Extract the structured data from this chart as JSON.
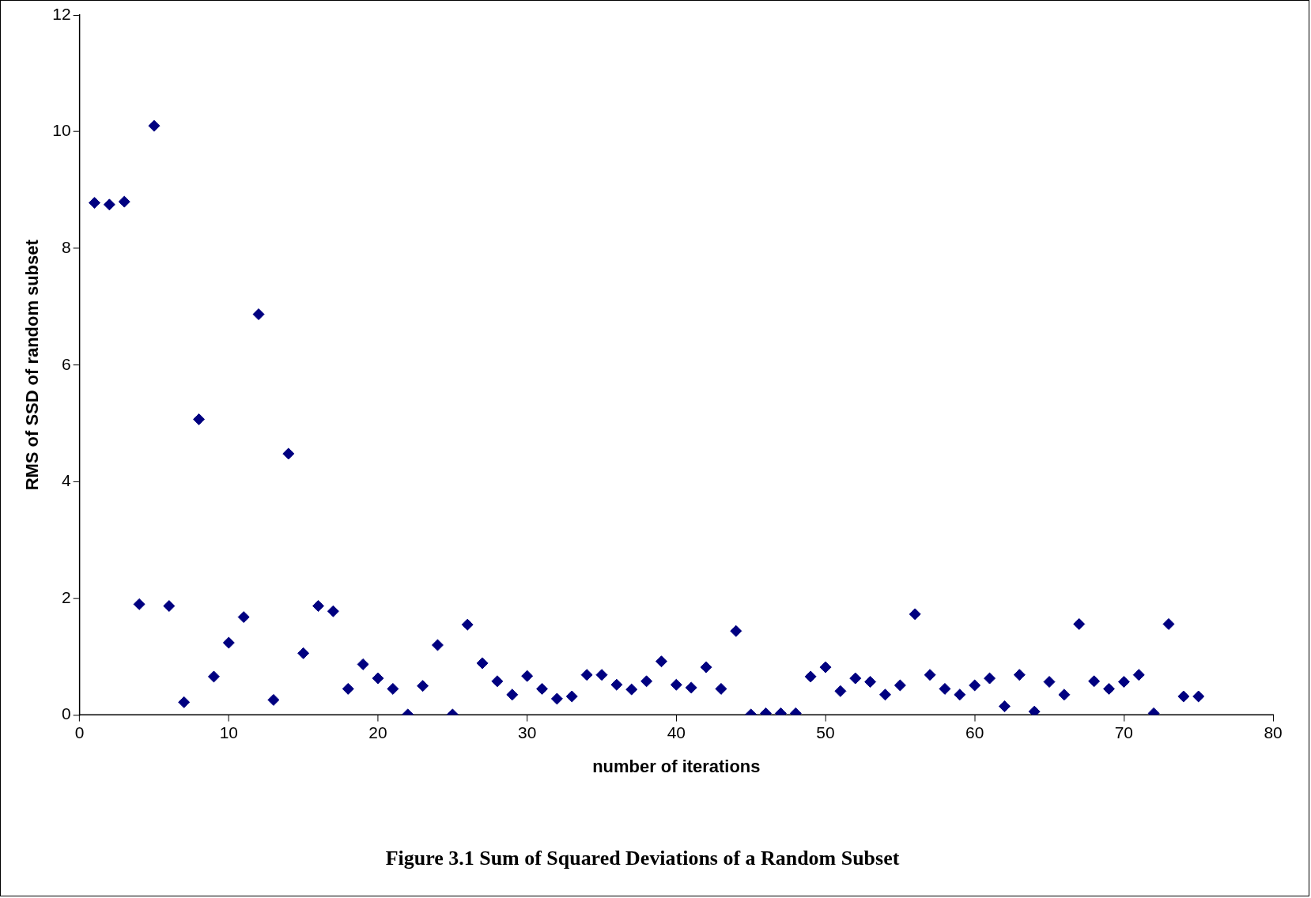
{
  "chart_data": {
    "type": "scatter",
    "title": "Figure 3.1 Sum of Squared Deviations of a Random Subset",
    "xlabel": "number of iterations",
    "ylabel": "RMS of SSD of random subset",
    "x": [
      1,
      2,
      3,
      4,
      5,
      6,
      7,
      8,
      9,
      10,
      11,
      12,
      13,
      14,
      15,
      16,
      17,
      18,
      19,
      20,
      21,
      22,
      23,
      24,
      25,
      26,
      27,
      28,
      29,
      30,
      31,
      32,
      33,
      34,
      35,
      36,
      37,
      38,
      39,
      40,
      41,
      42,
      43,
      44,
      45,
      46,
      47,
      48,
      49,
      50,
      51,
      52,
      53,
      54,
      55,
      56,
      57,
      58,
      59,
      60,
      61,
      62,
      63,
      64,
      65,
      66,
      67,
      68,
      69,
      70,
      71,
      72,
      73,
      74,
      75
    ],
    "values": [
      8.78,
      8.75,
      8.8,
      1.9,
      10.1,
      1.87,
      0.22,
      5.07,
      0.66,
      1.24,
      1.68,
      6.87,
      0.26,
      4.48,
      1.06,
      1.87,
      1.78,
      0.45,
      0.87,
      0.63,
      0.45,
      0.01,
      0.5,
      1.2,
      0.01,
      1.55,
      0.89,
      0.58,
      0.35,
      0.67,
      0.45,
      0.28,
      0.32,
      0.69,
      0.69,
      0.52,
      0.44,
      0.58,
      0.92,
      0.52,
      0.47,
      0.82,
      0.45,
      1.44,
      0.01,
      0.03,
      0.03,
      0.03,
      0.66,
      0.82,
      0.41,
      0.63,
      0.57,
      0.35,
      0.51,
      1.73,
      0.69,
      0.45,
      0.35,
      0.51,
      0.63,
      0.15,
      0.69,
      0.06,
      0.57,
      0.35,
      1.56,
      0.58,
      0.45,
      0.57,
      0.69,
      0.03,
      1.56,
      0.32,
      0.32
    ],
    "color": "#000080",
    "marker": "diamond",
    "grid": false,
    "legend": false,
    "xlim": [
      0,
      80
    ],
    "xticks": [
      0,
      10,
      20,
      30,
      40,
      50,
      60,
      70,
      80
    ],
    "ylim": [
      0,
      12
    ],
    "yticks": [
      0,
      2,
      4,
      6,
      8,
      10,
      12
    ]
  }
}
